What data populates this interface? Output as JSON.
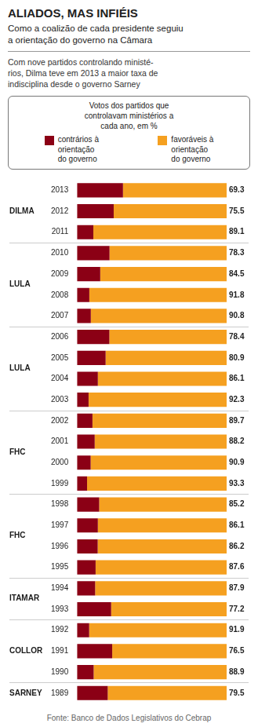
{
  "chart_data": {
    "type": "bar",
    "orientation": "horizontal",
    "stacked": true,
    "title": "ALIADOS, MAS INFIÉIS",
    "subtitle": "Como a coalizão de cada presidente seguiu\na orientação do governo na Câmara",
    "note": "Com nove partidos controlando ministé-\nrios, Dilma teve em 2013 a maior taxa de\nindisciplina desde o governo Sarney",
    "legend_title": "Votos dos partidos que\ncontrolavam ministérios a\ncada ano, em %",
    "legend": "top",
    "source": "Fonte: Banco de Dados Legislativos do Cebrap",
    "categories": [
      "2013",
      "2012",
      "2011",
      "2010",
      "2009",
      "2008",
      "2007",
      "2006",
      "2005",
      "2004",
      "2003",
      "2002",
      "2001",
      "2000",
      "1999",
      "1998",
      "1997",
      "1996",
      "1995",
      "1994",
      "1993",
      "1992",
      "1991",
      "1990",
      "1989"
    ],
    "series": [
      {
        "name": "contrários à\norientação\ndo governo",
        "color": "#8B0015",
        "values": [
          30.7,
          24.5,
          10.9,
          21.7,
          15.5,
          8.2,
          9.2,
          21.6,
          19.1,
          13.9,
          7.7,
          10.3,
          11.8,
          9.1,
          6.7,
          14.8,
          13.9,
          13.8,
          12.4,
          12.1,
          22.8,
          8.1,
          23.5,
          11.1,
          20.5
        ]
      },
      {
        "name": "favoráveis à\norientação\ndo governo",
        "color": "#F5A020",
        "data_labels": true,
        "values": [
          69.3,
          75.5,
          89.1,
          78.3,
          84.5,
          91.8,
          90.8,
          78.4,
          80.9,
          86.1,
          92.3,
          89.7,
          88.2,
          90.9,
          93.3,
          85.2,
          86.1,
          86.2,
          87.6,
          87.9,
          77.2,
          91.9,
          76.5,
          88.9,
          79.5
        ]
      }
    ],
    "groups": [
      {
        "label": "DILMA",
        "categories": [
          "2013",
          "2012",
          "2011"
        ]
      },
      {
        "label": "LULA",
        "categories": [
          "2010",
          "2009",
          "2008",
          "2007"
        ]
      },
      {
        "label": "LULA",
        "categories": [
          "2006",
          "2005",
          "2004",
          "2003"
        ]
      },
      {
        "label": "FHC",
        "categories": [
          "2002",
          "2001",
          "2000",
          "1999"
        ]
      },
      {
        "label": "FHC",
        "categories": [
          "1998",
          "1997",
          "1996",
          "1995"
        ]
      },
      {
        "label": "ITAMAR",
        "categories": [
          "1994",
          "1993"
        ]
      },
      {
        "label": "COLLOR",
        "categories": [
          "1992",
          "1991",
          "1990"
        ]
      },
      {
        "label": "SARNEY",
        "categories": [
          "1989"
        ]
      }
    ],
    "xlim": [
      0,
      100
    ],
    "grid": false,
    "tick_labels": "y"
  }
}
